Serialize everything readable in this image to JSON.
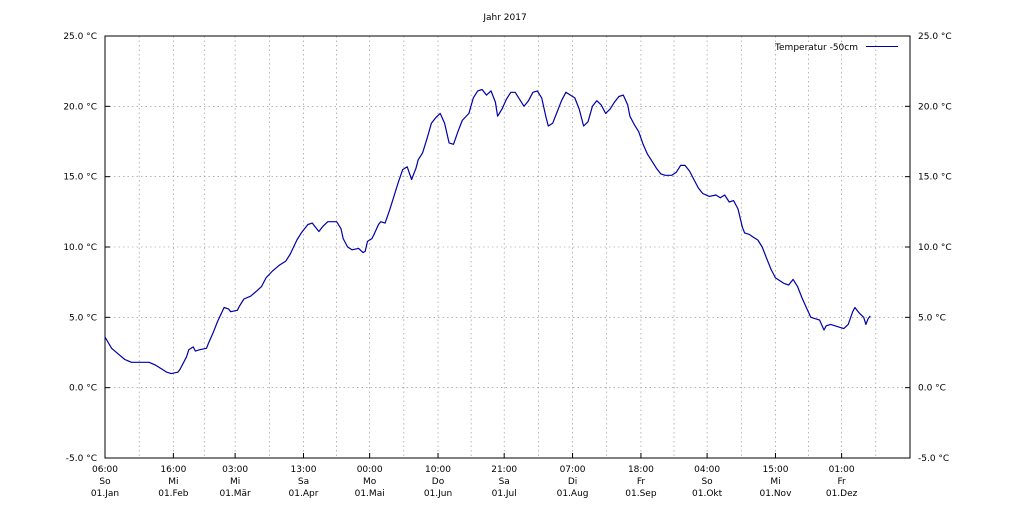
{
  "chart_data": {
    "type": "line",
    "title": "Jahr 2017",
    "xlabel": "",
    "ylabel": "",
    "ylim": [
      -5.0,
      25.0
    ],
    "y_ticks": [
      "-5.0 °C",
      "0.0 °C",
      "5.0 °C",
      "10.0 °C",
      "15.0 °C",
      "20.0 °C",
      "25.0 °C"
    ],
    "y_tick_values": [
      -5,
      0,
      5,
      10,
      15,
      20,
      25
    ],
    "grid": true,
    "legend_position": "top-right",
    "x_day_range": [
      0,
      365
    ],
    "x_ticks": [
      {
        "time": "06:00",
        "weekday": "So",
        "date": "01.Jan",
        "day": 0
      },
      {
        "time": "16:00",
        "weekday": "Mi",
        "date": "01.Feb",
        "day": 31
      },
      {
        "time": "03:00",
        "weekday": "Mi",
        "date": "01.Mär",
        "day": 59
      },
      {
        "time": "13:00",
        "weekday": "Sa",
        "date": "01.Apr",
        "day": 90
      },
      {
        "time": "00:00",
        "weekday": "Mo",
        "date": "01.Mai",
        "day": 120
      },
      {
        "time": "10:00",
        "weekday": "Do",
        "date": "01.Jun",
        "day": 151
      },
      {
        "time": "21:00",
        "weekday": "Sa",
        "date": "01.Jul",
        "day": 181
      },
      {
        "time": "07:00",
        "weekday": "Di",
        "date": "01.Aug",
        "day": 212
      },
      {
        "time": "18:00",
        "weekday": "Fr",
        "date": "01.Sep",
        "day": 243
      },
      {
        "time": "04:00",
        "weekday": "So",
        "date": "01.Okt",
        "day": 273
      },
      {
        "time": "15:00",
        "weekday": "Mi",
        "date": "01.Nov",
        "day": 304
      },
      {
        "time": "01:00",
        "weekday": "Fr",
        "date": "01.Dez",
        "day": 334
      }
    ],
    "series": [
      {
        "name": "Temperatur -50cm",
        "color": "#0000aa",
        "points": [
          [
            0,
            3.6
          ],
          [
            3,
            2.8
          ],
          [
            6,
            2.4
          ],
          [
            9,
            2.0
          ],
          [
            12,
            1.8
          ],
          [
            15,
            1.8
          ],
          [
            20,
            1.8
          ],
          [
            23,
            1.6
          ],
          [
            26,
            1.3
          ],
          [
            28,
            1.1
          ],
          [
            30,
            1.0
          ],
          [
            33,
            1.1
          ],
          [
            34,
            1.3
          ],
          [
            37,
            2.2
          ],
          [
            38,
            2.7
          ],
          [
            40,
            2.9
          ],
          [
            41,
            2.6
          ],
          [
            43,
            2.7
          ],
          [
            46,
            2.8
          ],
          [
            47,
            3.2
          ],
          [
            49,
            3.9
          ],
          [
            51,
            4.7
          ],
          [
            54,
            5.7
          ],
          [
            56,
            5.6
          ],
          [
            57,
            5.4
          ],
          [
            60,
            5.5
          ],
          [
            61,
            5.8
          ],
          [
            63,
            6.3
          ],
          [
            66,
            6.5
          ],
          [
            69,
            6.9
          ],
          [
            71,
            7.2
          ],
          [
            73,
            7.8
          ],
          [
            76,
            8.3
          ],
          [
            79,
            8.7
          ],
          [
            82,
            9.0
          ],
          [
            84,
            9.5
          ],
          [
            87,
            10.5
          ],
          [
            89,
            11.0
          ],
          [
            92,
            11.6
          ],
          [
            94,
            11.7
          ],
          [
            96,
            11.3
          ],
          [
            97,
            11.1
          ],
          [
            99,
            11.5
          ],
          [
            101,
            11.8
          ],
          [
            105,
            11.8
          ],
          [
            107,
            11.3
          ],
          [
            108,
            10.6
          ],
          [
            110,
            10.0
          ],
          [
            112,
            9.8
          ],
          [
            115,
            9.9
          ],
          [
            117,
            9.6
          ],
          [
            118,
            9.7
          ],
          [
            119,
            10.4
          ],
          [
            121,
            10.6
          ],
          [
            122,
            10.9
          ],
          [
            124,
            11.6
          ],
          [
            125,
            11.8
          ],
          [
            127,
            11.7
          ],
          [
            129,
            12.6
          ],
          [
            131,
            13.6
          ],
          [
            133,
            14.6
          ],
          [
            135,
            15.5
          ],
          [
            137,
            15.7
          ],
          [
            139,
            14.8
          ],
          [
            141,
            15.6
          ],
          [
            142,
            16.2
          ],
          [
            144,
            16.7
          ],
          [
            146,
            17.7
          ],
          [
            148,
            18.8
          ],
          [
            150,
            19.2
          ],
          [
            152,
            19.5
          ],
          [
            154,
            18.8
          ],
          [
            156,
            17.4
          ],
          [
            158,
            17.3
          ],
          [
            160,
            18.2
          ],
          [
            162,
            19.0
          ],
          [
            165,
            19.5
          ],
          [
            167,
            20.6
          ],
          [
            169,
            21.1
          ],
          [
            171,
            21.2
          ],
          [
            173,
            20.8
          ],
          [
            175,
            21.1
          ],
          [
            177,
            20.3
          ],
          [
            178,
            19.3
          ],
          [
            180,
            19.8
          ],
          [
            182,
            20.5
          ],
          [
            184,
            21.0
          ],
          [
            186,
            21.0
          ],
          [
            188,
            20.5
          ],
          [
            190,
            20.0
          ],
          [
            192,
            20.4
          ],
          [
            194,
            21.0
          ],
          [
            196,
            21.1
          ],
          [
            198,
            20.6
          ],
          [
            200,
            19.2
          ],
          [
            201,
            18.6
          ],
          [
            203,
            18.8
          ],
          [
            205,
            19.6
          ],
          [
            207,
            20.4
          ],
          [
            209,
            21.0
          ],
          [
            211,
            20.8
          ],
          [
            213,
            20.6
          ],
          [
            215,
            19.8
          ],
          [
            217,
            18.6
          ],
          [
            219,
            18.9
          ],
          [
            221,
            20.0
          ],
          [
            223,
            20.4
          ],
          [
            225,
            20.1
          ],
          [
            227,
            19.5
          ],
          [
            229,
            19.8
          ],
          [
            231,
            20.3
          ],
          [
            233,
            20.7
          ],
          [
            235,
            20.8
          ],
          [
            237,
            20.1
          ],
          [
            238,
            19.3
          ],
          [
            240,
            18.7
          ],
          [
            242,
            18.2
          ],
          [
            244,
            17.3
          ],
          [
            246,
            16.6
          ],
          [
            248,
            16.1
          ],
          [
            250,
            15.6
          ],
          [
            252,
            15.2
          ],
          [
            254,
            15.1
          ],
          [
            257,
            15.1
          ],
          [
            259,
            15.3
          ],
          [
            261,
            15.8
          ],
          [
            263,
            15.8
          ],
          [
            265,
            15.4
          ],
          [
            267,
            14.8
          ],
          [
            269,
            14.2
          ],
          [
            271,
            13.8
          ],
          [
            274,
            13.6
          ],
          [
            277,
            13.7
          ],
          [
            279,
            13.5
          ],
          [
            281,
            13.7
          ],
          [
            283,
            13.2
          ],
          [
            285,
            13.3
          ],
          [
            287,
            12.7
          ],
          [
            289,
            11.4
          ],
          [
            290,
            11.0
          ],
          [
            292,
            10.9
          ],
          [
            294,
            10.7
          ],
          [
            296,
            10.5
          ],
          [
            298,
            10.0
          ],
          [
            300,
            9.2
          ],
          [
            302,
            8.4
          ],
          [
            304,
            7.8
          ],
          [
            306,
            7.6
          ],
          [
            308,
            7.4
          ],
          [
            310,
            7.3
          ],
          [
            312,
            7.7
          ],
          [
            314,
            7.2
          ],
          [
            316,
            6.4
          ],
          [
            318,
            5.7
          ],
          [
            320,
            5.0
          ],
          [
            322,
            4.9
          ],
          [
            324,
            4.8
          ],
          [
            326,
            4.1
          ],
          [
            327,
            4.4
          ],
          [
            329,
            4.5
          ],
          [
            331,
            4.4
          ],
          [
            333,
            4.3
          ],
          [
            335,
            4.2
          ],
          [
            337,
            4.5
          ],
          [
            339,
            5.4
          ],
          [
            340,
            5.7
          ],
          [
            342,
            5.3
          ],
          [
            344,
            5.0
          ],
          [
            345,
            4.5
          ],
          [
            346,
            4.9
          ],
          [
            347,
            5.1
          ]
        ]
      }
    ]
  }
}
